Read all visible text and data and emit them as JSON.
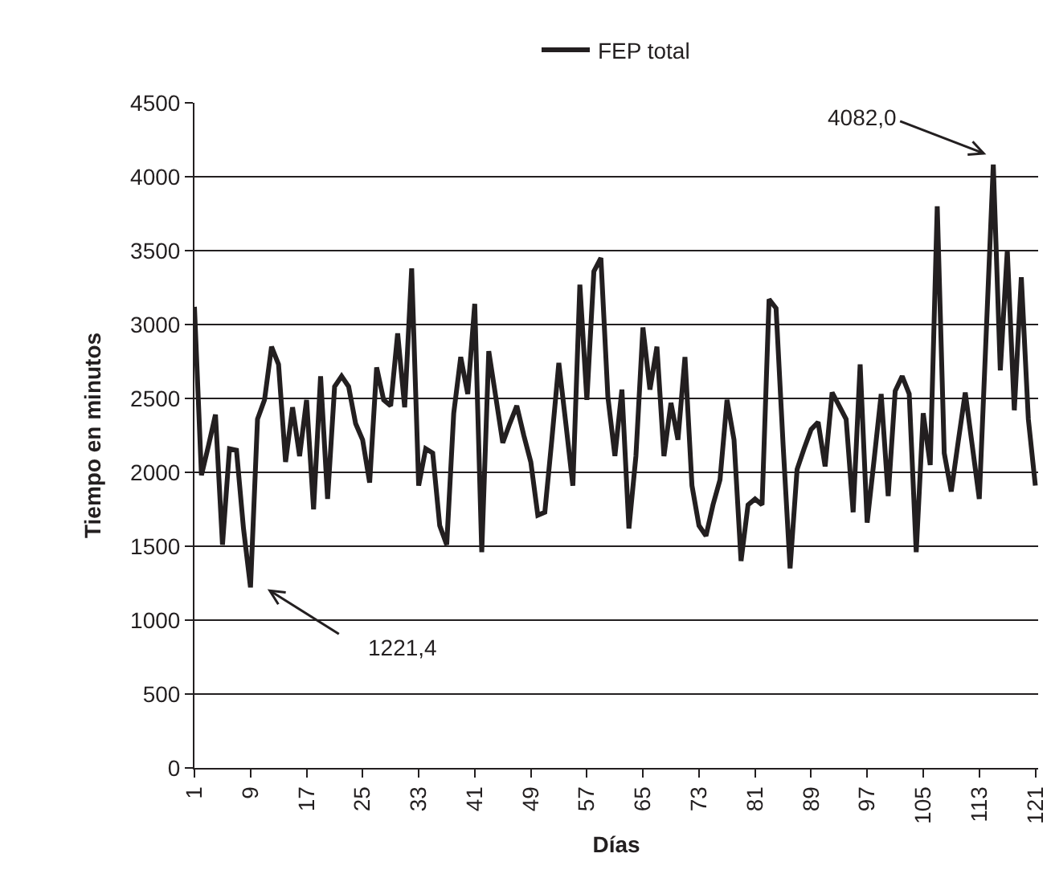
{
  "chart_data": {
    "type": "line",
    "xlabel": "Días",
    "ylabel": "Tiempo en minutos",
    "categories": [
      "1",
      null,
      null,
      null,
      null,
      null,
      null,
      null,
      "9",
      null,
      null,
      null,
      null,
      null,
      null,
      null,
      "17",
      null,
      null,
      null,
      null,
      null,
      null,
      null,
      "25",
      null,
      null,
      null,
      null,
      null,
      null,
      null,
      "33",
      null,
      null,
      null,
      null,
      null,
      null,
      null,
      "41",
      null,
      null,
      null,
      null,
      null,
      null,
      null,
      "49",
      null,
      null,
      null,
      null,
      null,
      null,
      null,
      "57",
      null,
      null,
      null,
      null,
      null,
      null,
      null,
      "65",
      null,
      null,
      null,
      null,
      null,
      null,
      null,
      "73",
      null,
      null,
      null,
      null,
      null,
      null,
      null,
      "81",
      null,
      null,
      null,
      null,
      null,
      null,
      null,
      "89",
      null,
      null,
      null,
      null,
      null,
      null,
      null,
      "97",
      null,
      null,
      null,
      null,
      null,
      null,
      null,
      "105",
      null,
      null,
      null,
      null,
      null,
      null,
      null,
      "113",
      null,
      null,
      null,
      null,
      null,
      null,
      null,
      "121"
    ],
    "series": [
      {
        "name": "FEP total",
        "color": "#231f20",
        "values": [
          3120,
          1980,
          2180,
          2390,
          1510,
          2160,
          2150,
          1620,
          1221.4,
          2360,
          2490,
          2850,
          2730,
          2070,
          2440,
          2110,
          2490,
          1750,
          2650,
          1820,
          2580,
          2650,
          2580,
          2330,
          2220,
          1930,
          2710,
          2490,
          2450,
          2940,
          2440,
          3380,
          1910,
          2160,
          2130,
          1640,
          1510,
          2400,
          2780,
          2530,
          3140,
          1460,
          2820,
          2510,
          2200,
          2330,
          2450,
          2250,
          2070,
          1710,
          1730,
          2220,
          2740,
          2330,
          1910,
          3270,
          2490,
          3360,
          3450,
          2510,
          2110,
          2560,
          1620,
          2110,
          2980,
          2560,
          2850,
          2110,
          2470,
          2220,
          2780,
          1910,
          1640,
          1570,
          1780,
          1950,
          2490,
          2220,
          1400,
          1780,
          1820,
          1780,
          3170,
          3110,
          2190,
          1350,
          2020,
          2160,
          2290,
          2340,
          2040,
          2540,
          2450,
          2360,
          1730,
          2730,
          1660,
          2090,
          2530,
          1840,
          2550,
          2650,
          2530,
          1460,
          2400,
          2050,
          3800,
          2130,
          1870,
          2210,
          2540,
          2180,
          1820,
          2950,
          4082.0,
          2690,
          3500,
          2420,
          3320,
          2360,
          1910
        ]
      }
    ],
    "ylim": [
      0,
      4500
    ],
    "yticks": [
      0,
      500,
      1000,
      1500,
      2000,
      2500,
      3000,
      3500,
      4000,
      4500
    ],
    "grid": "y",
    "legend": "top",
    "marker": "none",
    "line_style": "solid",
    "annotations": [
      "1221,4",
      "4082,0"
    ]
  }
}
